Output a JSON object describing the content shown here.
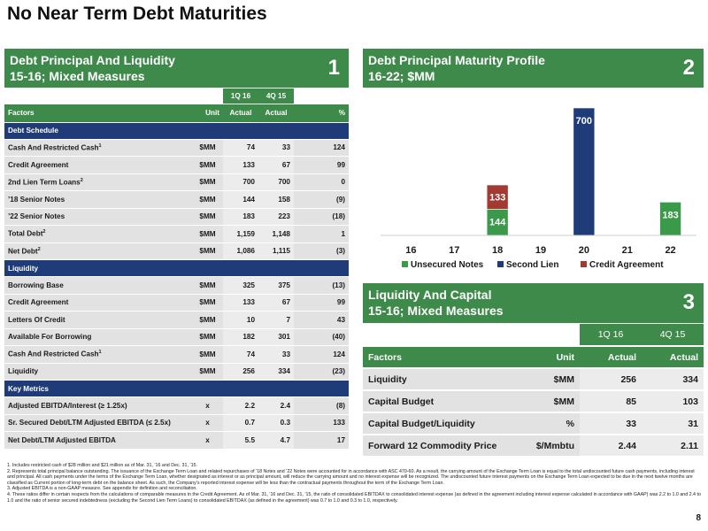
{
  "title": "No Near Term Debt Maturities",
  "panel1": {
    "line1": "Debt Principal And Liquidity",
    "line2": "15-16; Mixed Measures",
    "number": "1",
    "period1": "1Q 16",
    "period2": "4Q 15",
    "col_factors": "Factors",
    "col_unit": "Unit",
    "col_actual1": "Actual",
    "col_actual2": "Actual",
    "col_pct": "%",
    "sections": [
      {
        "name": "Debt Schedule",
        "rows": [
          {
            "label": "Cash And Restricted Cash",
            "sup": "1",
            "unit": "$MM",
            "v1": "74",
            "v2": "33",
            "pct": "124"
          },
          {
            "label": "Credit Agreement",
            "sup": "",
            "unit": "$MM",
            "v1": "133",
            "v2": "67",
            "pct": "99"
          },
          {
            "label": "2nd Lien Term Loans",
            "sup": "2",
            "unit": "$MM",
            "v1": "700",
            "v2": "700",
            "pct": "0"
          },
          {
            "label": "’18 Senior Notes",
            "sup": "",
            "unit": "$MM",
            "v1": "144",
            "v2": "158",
            "pct": "(9)"
          },
          {
            "label": "’22 Senior Notes",
            "sup": "",
            "unit": "$MM",
            "v1": "183",
            "v2": "223",
            "pct": "(18)"
          },
          {
            "label": "Total Debt",
            "sup": "2",
            "unit": "$MM",
            "v1": "1,159",
            "v2": "1,148",
            "pct": "1"
          },
          {
            "label": "Net Debt",
            "sup": "2",
            "unit": "$MM",
            "v1": "1,086",
            "v2": "1,115",
            "pct": "(3)"
          }
        ]
      },
      {
        "name": "Liquidity",
        "rows": [
          {
            "label": "Borrowing Base",
            "sup": "",
            "unit": "$MM",
            "v1": "325",
            "v2": "375",
            "pct": "(13)"
          },
          {
            "label": "Credit Agreement",
            "sup": "",
            "unit": "$MM",
            "v1": "133",
            "v2": "67",
            "pct": "99"
          },
          {
            "label": "Letters Of Credit",
            "sup": "",
            "unit": "$MM",
            "v1": "10",
            "v2": "7",
            "pct": "43"
          },
          {
            "label": "Available For Borrowing",
            "sup": "",
            "unit": "$MM",
            "v1": "182",
            "v2": "301",
            "pct": "(40)"
          },
          {
            "label": "Cash And Restricted Cash",
            "sup": "1",
            "unit": "$MM",
            "v1": "74",
            "v2": "33",
            "pct": "124"
          },
          {
            "label": "Liquidity",
            "sup": "",
            "unit": "$MM",
            "v1": "256",
            "v2": "334",
            "pct": "(23)"
          }
        ]
      },
      {
        "name": "Key Metrics",
        "rows": [
          {
            "label": "Adjusted EBITDA/Interest (≥ 1.25x)",
            "sup": "",
            "unit": "x",
            "v1": "2.2",
            "v2": "2.4",
            "pct": "(8)"
          },
          {
            "label": "Sr. Secured Debt/LTM Adjusted EBITDA (≤ 2.5x)",
            "sup": "",
            "unit": "x",
            "v1": "0.7",
            "v2": "0.3",
            "pct": "133"
          },
          {
            "label": "Net Debt/LTM Adjusted EBITDA",
            "sup": "",
            "unit": "x",
            "v1": "5.5",
            "v2": "4.7",
            "pct": "17"
          }
        ]
      }
    ]
  },
  "panel2": {
    "line1": "Debt Principal Maturity Profile",
    "line2": "16-22; $MM",
    "number": "2"
  },
  "chart_data": {
    "type": "bar",
    "stacked": true,
    "categories": [
      "16",
      "17",
      "18",
      "19",
      "20",
      "21",
      "22"
    ],
    "series": [
      {
        "name": "Unsecured Notes",
        "color": "#3a9a4a",
        "values": [
          0,
          0,
          144,
          0,
          0,
          0,
          183
        ]
      },
      {
        "name": "Second Lien",
        "color": "#1f3c78",
        "values": [
          0,
          0,
          0,
          0,
          700,
          0,
          0
        ]
      },
      {
        "name": "Credit Agreement",
        "color": "#a33a32",
        "values": [
          0,
          0,
          133,
          0,
          0,
          0,
          0
        ]
      }
    ],
    "title": "",
    "xlabel": "",
    "ylabel": "",
    "legend": "bottom",
    "grid": false
  },
  "panel3": {
    "line1": "Liquidity And Capital",
    "line2": "15-16; Mixed Measures",
    "number": "3",
    "period1": "1Q 16",
    "period2": "4Q 15",
    "col_factors": "Factors",
    "col_unit": "Unit",
    "col_actual1": "Actual",
    "col_actual2": "Actual",
    "rows": [
      {
        "label": "Liquidity",
        "unit": "$MM",
        "v1": "256",
        "v2": "334"
      },
      {
        "label": "Capital Budget",
        "unit": "$MM",
        "v1": "85",
        "v2": "103"
      },
      {
        "label": "Capital Budget/Liquidity",
        "unit": "%",
        "v1": "33",
        "v2": "31"
      },
      {
        "label": "Forward 12 Commodity Price",
        "unit": "$/Mmbtu",
        "v1": "2.44",
        "v2": "2.11"
      }
    ]
  },
  "footnotes": [
    "1.  Includes restricted cash of $28 million and $21 million as of Mar. 31, ’16 and Dec. 31, ’15.",
    "2.  Represents total principal balance outstanding. The issuance of the Exchange Term Loan and related repurchases of ’18 Notes and ’22 Notes were accounted for in accordance with ASC 470-60. As a result, the carrying amount of the Exchange Term Loan is equal to the total undiscounted future cash payments, including interest and principal. All cash payments under the terms of the Exchange Term Loan, whether designated as interest or as principal amount, will reduce the carrying amount and no interest expense will be recognized. The undiscounted future interest payments on the Exchange Term Loan expected to be due in the next twelve months are classified as Current portion of long-term debt on the balance sheet. As such, the Company’s reported interest expense will be less than the contractual payments throughout the term of the Exchange Term Loan.",
    "3.  Adjusted EBITDA is a non-GAAP measure. See appendix for definition and reconciliation.",
    "4.  These ratios differ in certain respects from the calculations of comparable measures in the Credit Agreement. As of Mar. 31, ’16 and Dec. 31, ’15, the ratio of consolidated EBITDAX to consolidated interest expense (as defined in the agreement including interest expense calculated in accordance with GAAP) was 2.2 to 1.0 and 2.4 to 1.0 and the ratio of senior secured indebtedness (excluding the Second Lien Term Loans) to consolidated EBITDAX (as defined in the agreement) was 0.7 to 1.0 and 0.3 to 1.0, respectively."
  ],
  "page_number": "8"
}
